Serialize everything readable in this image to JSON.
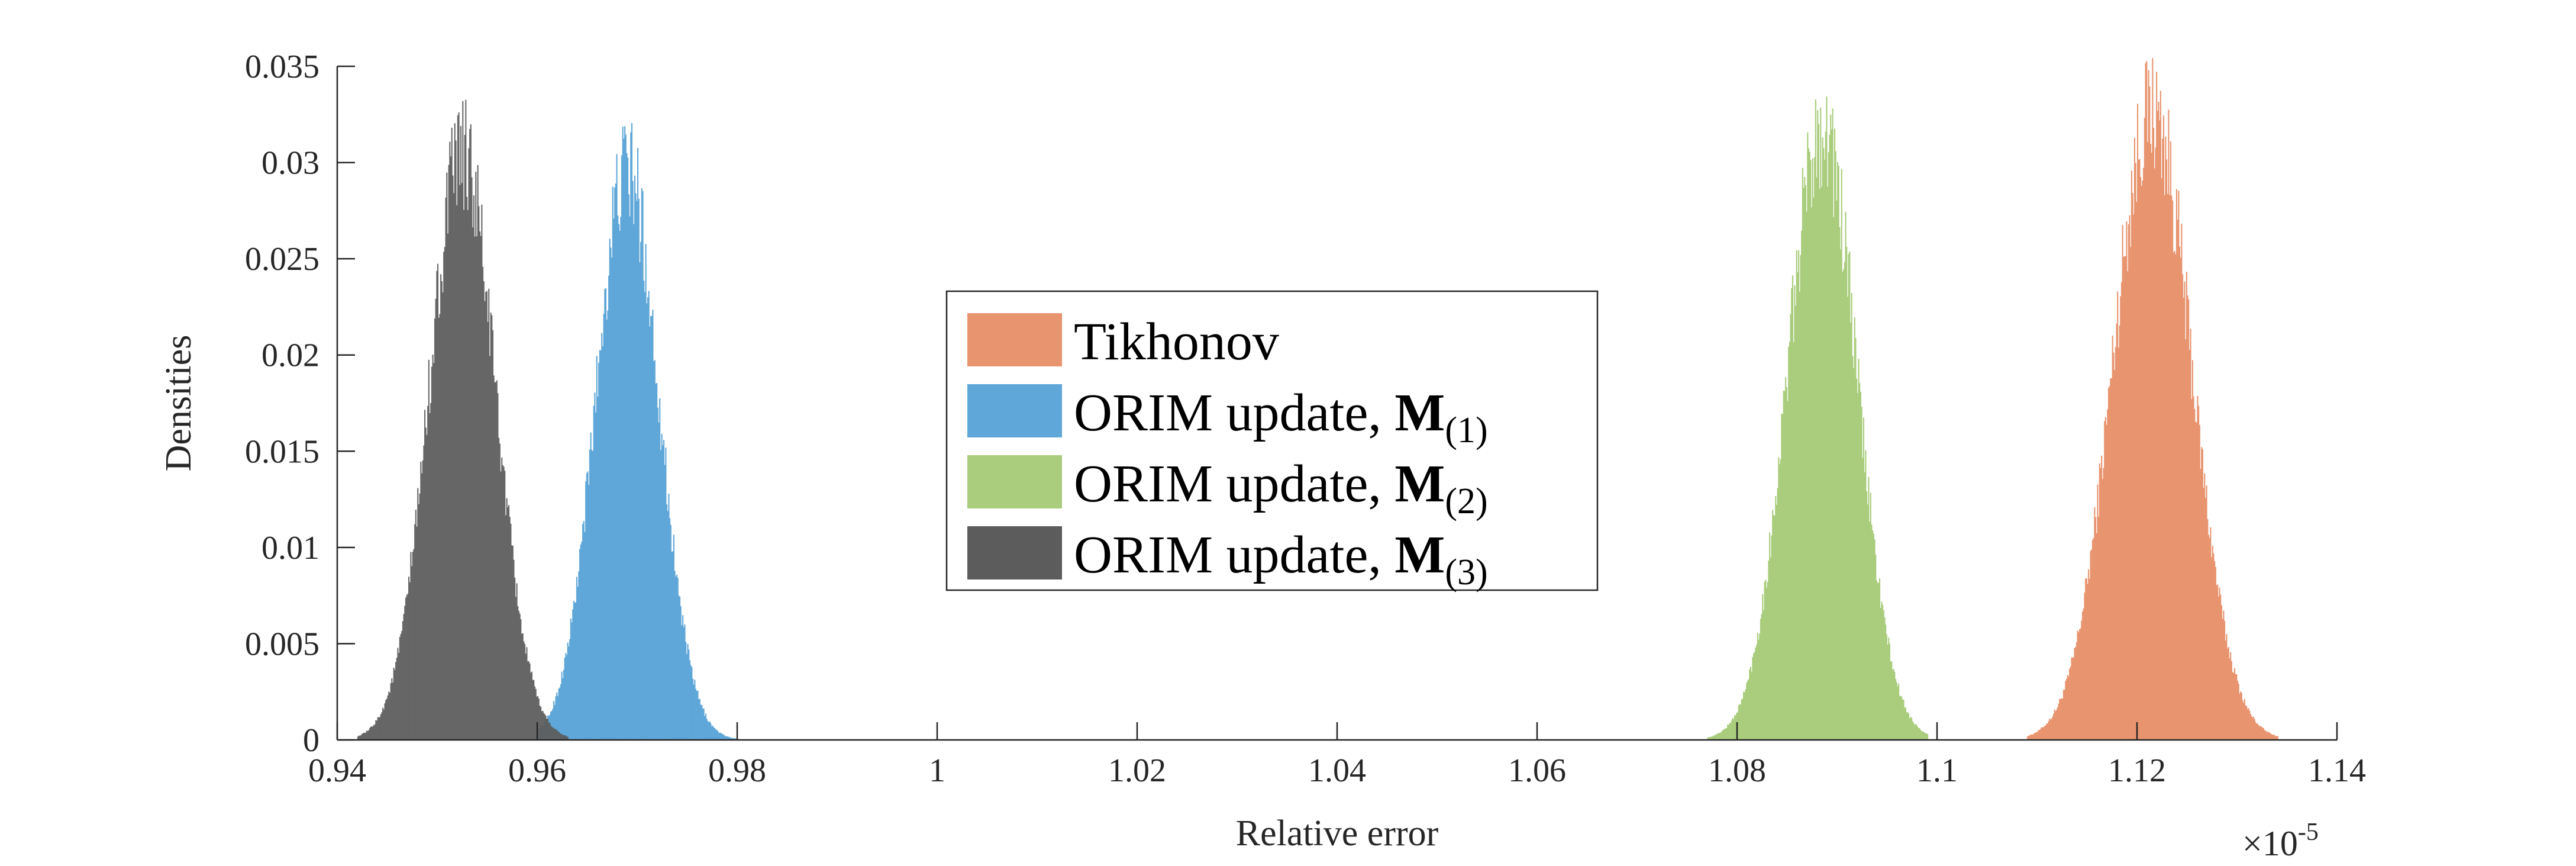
{
  "chart_data": {
    "type": "histogram",
    "xlabel": "Relative error",
    "ylabel": "Densities",
    "x_exponent_label": "×10",
    "x_exponent_power": "-5",
    "xlim": [
      0.94,
      1.14
    ],
    "ylim": [
      0,
      0.035
    ],
    "x_ticks": [
      "0.94",
      "0.96",
      "0.98",
      "1",
      "1.02",
      "1.04",
      "1.06",
      "1.08",
      "1.1",
      "1.12",
      "1.14"
    ],
    "x_tick_values": [
      0.94,
      0.96,
      0.98,
      1.0,
      1.02,
      1.04,
      1.06,
      1.08,
      1.1,
      1.12,
      1.14
    ],
    "y_ticks": [
      "0",
      "0.005",
      "0.01",
      "0.015",
      "0.02",
      "0.025",
      "0.03",
      "0.035"
    ],
    "y_tick_values": [
      0,
      0.005,
      0.01,
      0.015,
      0.02,
      0.025,
      0.03,
      0.035
    ],
    "grid": false,
    "legend_position": "center",
    "series": [
      {
        "name": "Tikhonov",
        "legend_text": "Tikhonov",
        "legend_math": "",
        "legend_sub": "",
        "color": "#e8946f",
        "range": [
          1.109,
          1.134
        ],
        "mean": 1.1215,
        "peak_density": 0.0327
      },
      {
        "name": "ORIM update, M(1)",
        "legend_text": "ORIM update, ",
        "legend_math": "M",
        "legend_sub": "(1)",
        "color": "#5fa7d8",
        "range": [
          0.96,
          0.98
        ],
        "mean": 0.969,
        "peak_density": 0.0297
      },
      {
        "name": "ORIM update, M(2)",
        "legend_text": "ORIM update, ",
        "legend_math": "M",
        "legend_sub": "(2)",
        "color": "#a9cd7c",
        "range": [
          1.077,
          1.099
        ],
        "mean": 1.0885,
        "peak_density": 0.0318
      },
      {
        "name": "ORIM update, M(3)",
        "legend_text": "ORIM update, ",
        "legend_math": "M",
        "legend_sub": "(3)",
        "color": "#5c5c5c",
        "range": [
          0.942,
          0.963
        ],
        "mean": 0.9525,
        "peak_density": 0.0305
      }
    ]
  }
}
